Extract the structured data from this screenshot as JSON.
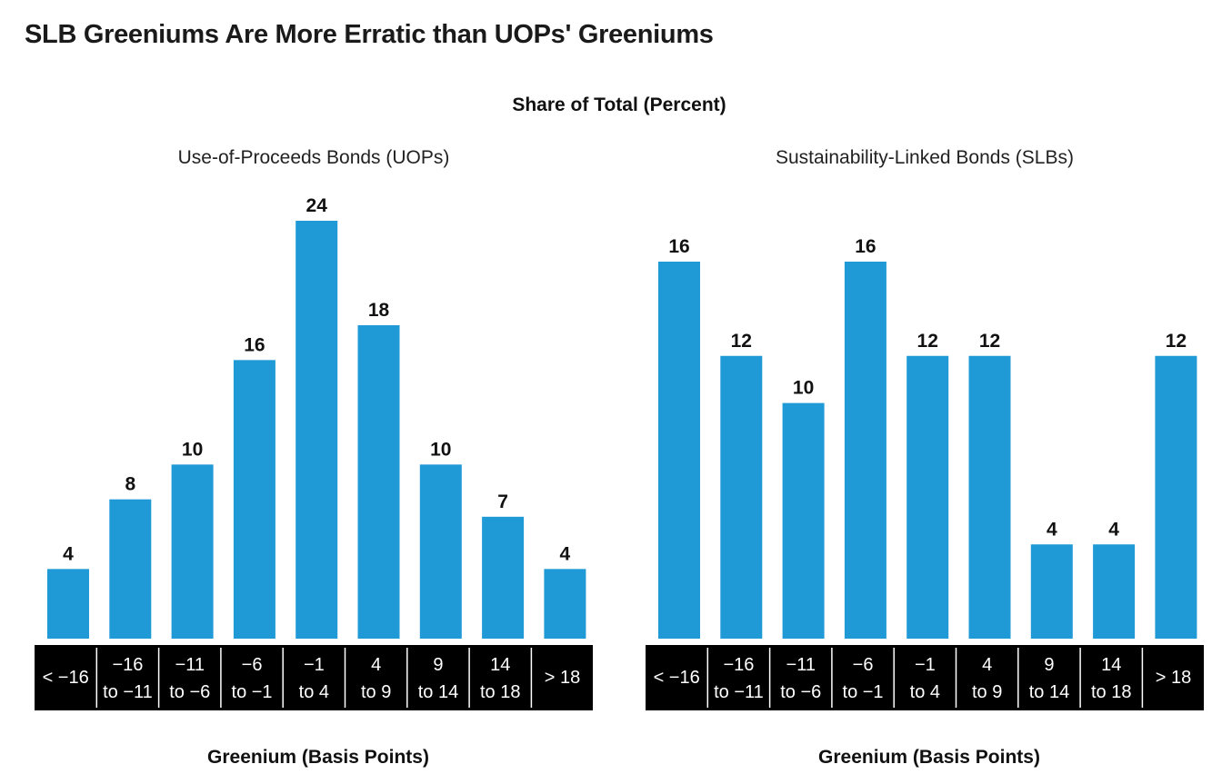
{
  "title": "SLB Greeniums Are More Erratic than UOPs' Greeniums",
  "subtitle": "Share of Total (Percent)",
  "colors": {
    "bar": "#1f9ad6",
    "axis_band": "#000000",
    "tick_text": "#ffffff"
  },
  "chart_data": [
    {
      "type": "bar",
      "title": "Use-of-Proceeds Bonds (UOPs)",
      "xlabel": "Greenium (Basis Points)",
      "ylabel": "",
      "categories": [
        [
          "< −16"
        ],
        [
          "−16",
          "to −11"
        ],
        [
          "−11",
          "to −6"
        ],
        [
          "−6",
          "to −1"
        ],
        [
          "−1",
          "to 4"
        ],
        [
          "4",
          "to 9"
        ],
        [
          "9",
          "to 14"
        ],
        [
          "14",
          "to 18"
        ],
        [
          "> 18"
        ]
      ],
      "values": [
        4,
        8,
        10,
        16,
        24,
        18,
        10,
        7,
        4
      ],
      "ylim": [
        0,
        24
      ]
    },
    {
      "type": "bar",
      "title": "Sustainability-Linked Bonds (SLBs)",
      "xlabel": "Greenium (Basis Points)",
      "ylabel": "",
      "categories": [
        [
          "< −16"
        ],
        [
          "−16",
          "to −11"
        ],
        [
          "−11",
          "to −6"
        ],
        [
          "−6",
          "to −1"
        ],
        [
          "−1",
          "to 4"
        ],
        [
          "4",
          "to 9"
        ],
        [
          "9",
          "to 14"
        ],
        [
          "14",
          "to 18"
        ],
        [
          "> 18"
        ]
      ],
      "values": [
        16,
        12,
        10,
        16,
        12,
        12,
        4,
        4,
        12
      ],
      "ylim": [
        0,
        16
      ]
    }
  ]
}
